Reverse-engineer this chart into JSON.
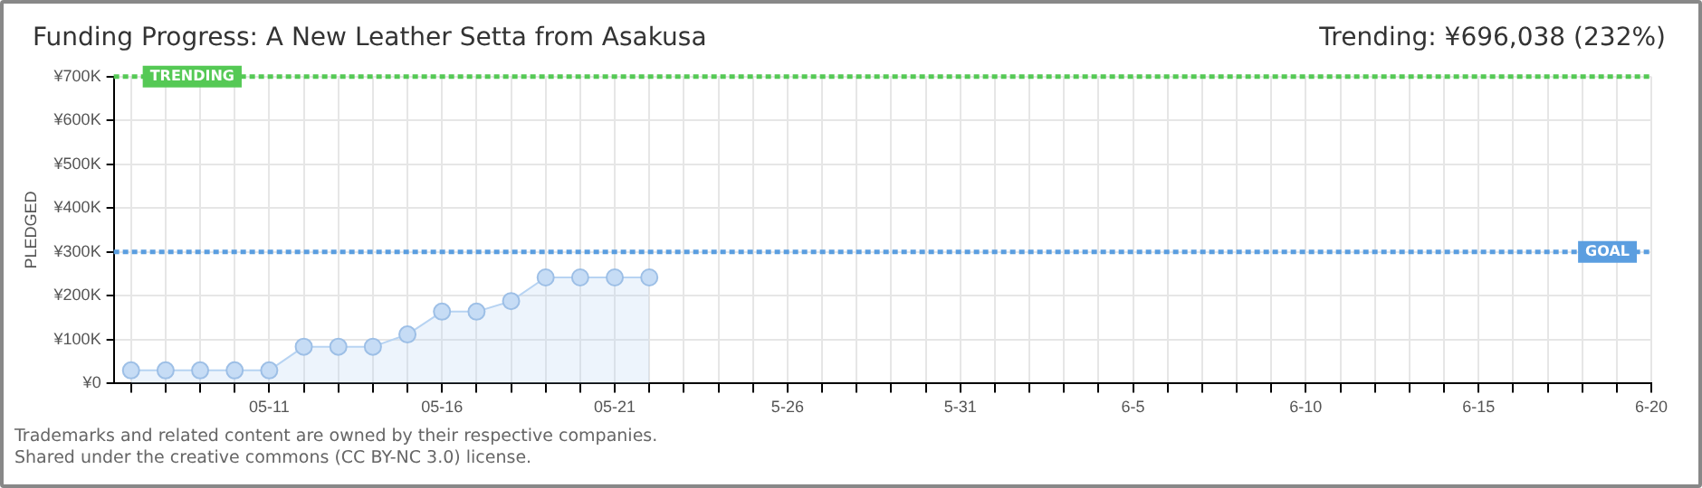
{
  "chart_data": {
    "type": "area",
    "title": "Funding Progress: A New Leather Setta from Asakusa",
    "subtitle": "Trending: ¥696,038 (232%)",
    "ylabel": "PLEDGED",
    "x": [
      "--05-07",
      "--05-08",
      "--05-09",
      "--05-10",
      "--05-11",
      "--05-12",
      "--05-13",
      "--05-14",
      "--05-15",
      "--05-16",
      "--05-17",
      "--05-18",
      "--05-19",
      "--05-20",
      "--05-21",
      "--05-22"
    ],
    "series": [
      {
        "color": "#b7d3f2",
        "values": [
          30000,
          30000,
          30000,
          30000,
          30000,
          84000,
          84000,
          84000,
          112000,
          164000,
          164000,
          188000,
          242000,
          242000,
          242000,
          242000
        ]
      }
    ],
    "marker": "circle",
    "grid": true,
    "legend": false,
    "ylim": [
      0,
      700000
    ],
    "yticks": [
      {
        "value": 0,
        "label": "¥0"
      },
      {
        "value": 100000,
        "label": "¥100K"
      },
      {
        "value": 200000,
        "label": "¥200K"
      },
      {
        "value": 300000,
        "label": "¥300K"
      },
      {
        "value": 400000,
        "label": "¥400K"
      },
      {
        "value": 500000,
        "label": "¥500K"
      },
      {
        "value": 600000,
        "label": "¥600K"
      },
      {
        "value": 700000,
        "label": "¥700K"
      }
    ],
    "xlim": [
      "--05-06T12:00",
      "--06-20"
    ],
    "xticks": [
      {
        "value": "--05-07",
        "label": null
      },
      {
        "value": "--05-08",
        "label": null
      },
      {
        "value": "--05-09",
        "label": null
      },
      {
        "value": "--05-10",
        "label": null
      },
      {
        "value": "--05-11",
        "label": "05-11"
      },
      {
        "value": "--05-12",
        "label": null
      },
      {
        "value": "--05-13",
        "label": null
      },
      {
        "value": "--05-14",
        "label": null
      },
      {
        "value": "--05-15",
        "label": null
      },
      {
        "value": "--05-16",
        "label": "05-16"
      },
      {
        "value": "--05-17",
        "label": null
      },
      {
        "value": "--05-18",
        "label": null
      },
      {
        "value": "--05-19",
        "label": null
      },
      {
        "value": "--05-20",
        "label": null
      },
      {
        "value": "--05-21",
        "label": "05-21"
      },
      {
        "value": "--05-22",
        "label": null
      },
      {
        "value": "--05-23",
        "label": null
      },
      {
        "value": "--05-24",
        "label": null
      },
      {
        "value": "--05-25",
        "label": null
      },
      {
        "value": "--05-26",
        "label": "5-26"
      },
      {
        "value": "--05-27",
        "label": null
      },
      {
        "value": "--05-28",
        "label": null
      },
      {
        "value": "--05-29",
        "label": null
      },
      {
        "value": "--05-30",
        "label": null
      },
      {
        "value": "--05-31",
        "label": "5-31"
      },
      {
        "value": "--06-01",
        "label": null
      },
      {
        "value": "--06-02",
        "label": null
      },
      {
        "value": "--06-03",
        "label": null
      },
      {
        "value": "--06-04",
        "label": null
      },
      {
        "value": "--06-05",
        "label": "6-5"
      },
      {
        "value": "--06-06",
        "label": null
      },
      {
        "value": "--06-07",
        "label": null
      },
      {
        "value": "--06-08",
        "label": null
      },
      {
        "value": "--06-09",
        "label": null
      },
      {
        "value": "--06-10",
        "label": "6-10"
      },
      {
        "value": "--06-11",
        "label": null
      },
      {
        "value": "--06-12",
        "label": null
      },
      {
        "value": "--06-13",
        "label": null
      },
      {
        "value": "--06-14",
        "label": null
      },
      {
        "value": "--06-15",
        "label": "6-15"
      },
      {
        "value": "--06-16",
        "label": null
      },
      {
        "value": "--06-17",
        "label": null
      },
      {
        "value": "--06-18",
        "label": null
      },
      {
        "value": "--06-19",
        "label": null
      },
      {
        "value": "--06-20",
        "label": "6-20"
      }
    ],
    "ref_lines": [
      {
        "axis": "y",
        "value": 700000,
        "label": "TRENDING",
        "color": "#55c955",
        "line_style": "dotted"
      },
      {
        "axis": "y",
        "value": 300000,
        "label": "GOAL",
        "color": "#5b9ee0",
        "line_style": "dotted"
      }
    ],
    "annotations": [
      "Trademarks and related content are owned by their respective companies.",
      "Shared under the creative commons (CC BY-NC 3.0) license."
    ]
  }
}
